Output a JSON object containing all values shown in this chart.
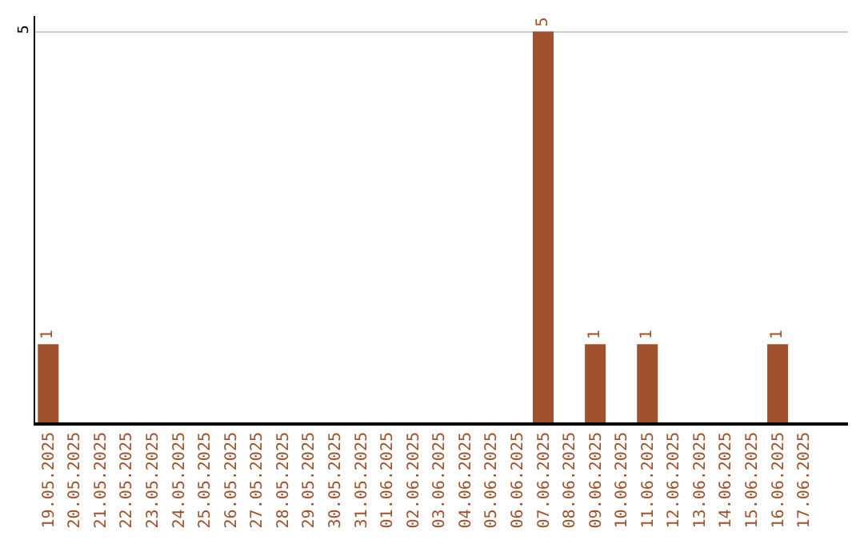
{
  "chart_data": {
    "type": "bar",
    "categories": [
      "19.05.2025",
      "20.05.2025",
      "21.05.2025",
      "22.05.2025",
      "23.05.2025",
      "24.05.2025",
      "25.05.2025",
      "26.05.2025",
      "27.05.2025",
      "28.05.2025",
      "29.05.2025",
      "30.05.2025",
      "31.05.2025",
      "01.06.2025",
      "02.06.2025",
      "03.06.2025",
      "04.06.2025",
      "05.06.2025",
      "06.06.2025",
      "07.06.2025",
      "08.06.2025",
      "09.06.2025",
      "10.06.2025",
      "11.06.2025",
      "12.06.2025",
      "13.06.2025",
      "14.06.2025",
      "15.06.2025",
      "16.06.2025",
      "17.06.2025"
    ],
    "values": [
      1,
      0,
      0,
      0,
      0,
      0,
      0,
      0,
      0,
      0,
      0,
      0,
      0,
      0,
      0,
      0,
      0,
      0,
      0,
      5,
      0,
      1,
      0,
      1,
      0,
      0,
      0,
      0,
      1,
      0
    ],
    "value_labels": [
      "1",
      null,
      null,
      null,
      null,
      null,
      null,
      null,
      null,
      null,
      null,
      null,
      null,
      null,
      null,
      null,
      null,
      null,
      null,
      "5",
      null,
      "1",
      null,
      "1",
      null,
      null,
      null,
      null,
      "1",
      null
    ],
    "color": "#a0522d",
    "ylim": [
      0,
      5.2
    ],
    "yticks": [
      5
    ],
    "grid": "y"
  }
}
